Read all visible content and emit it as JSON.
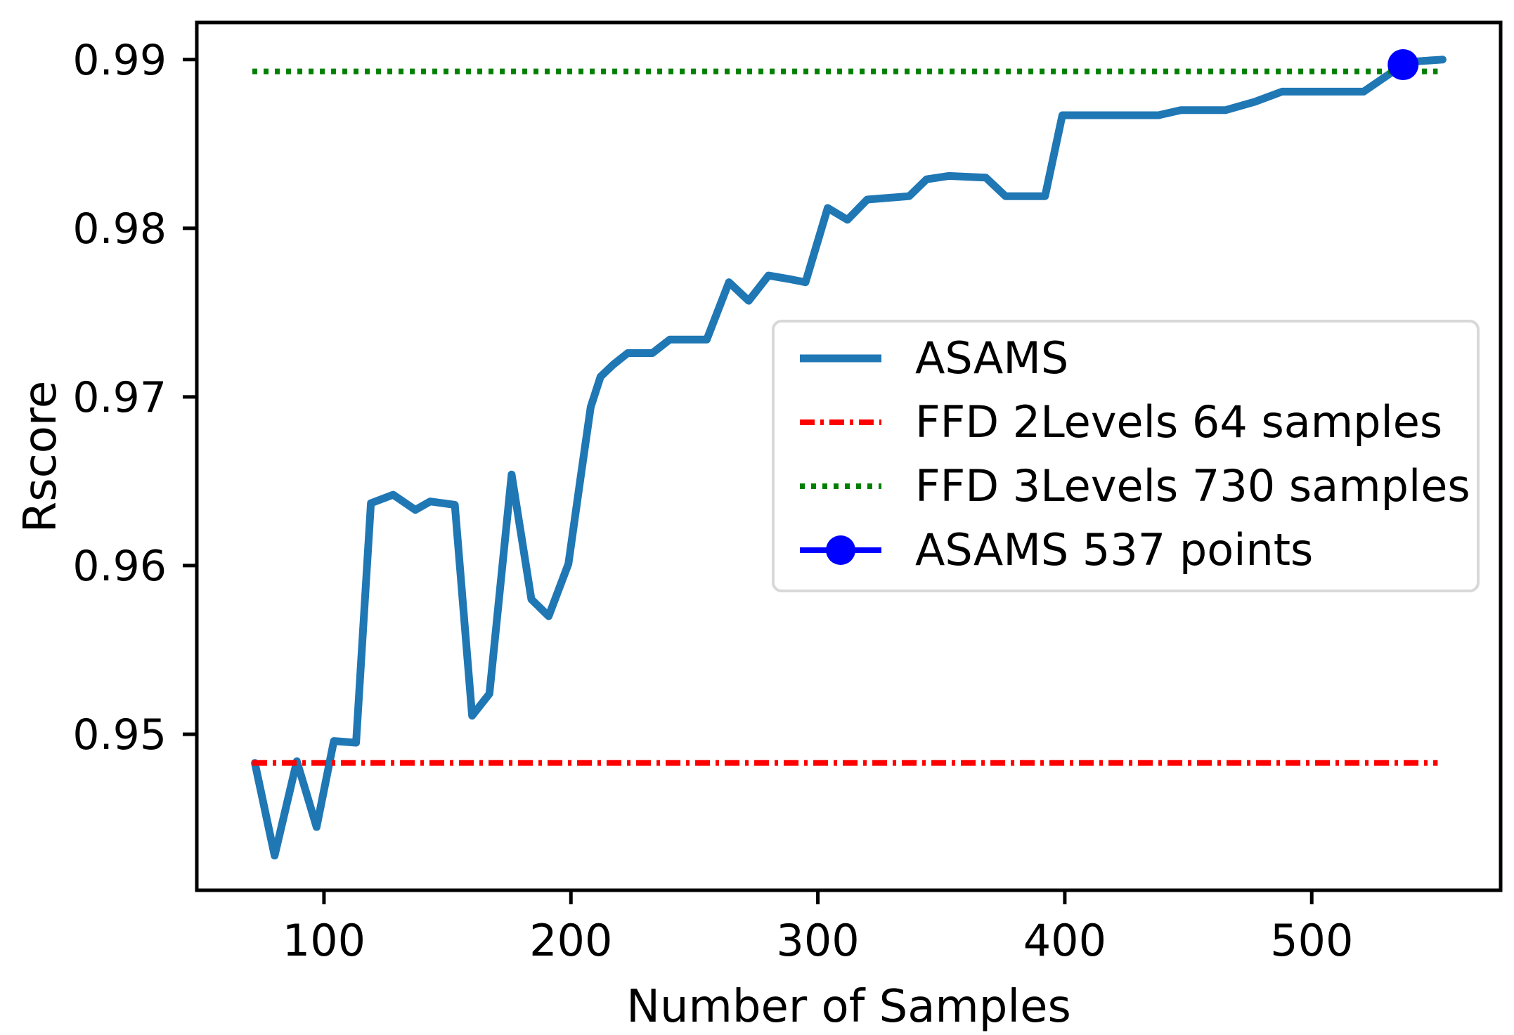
{
  "figure": {
    "background_color": "#ffffff"
  },
  "chart_data": {
    "type": "line",
    "title": "",
    "xlabel": "Number of Samples",
    "ylabel": "Rscore",
    "xlim": [
      48.5,
      576.5
    ],
    "ylim": [
      0.94075,
      0.9922
    ],
    "xticks": [
      100,
      200,
      300,
      400,
      500
    ],
    "xtick_labels": [
      "100",
      "200",
      "300",
      "400",
      "500"
    ],
    "yticks": [
      0.95,
      0.96,
      0.97,
      0.98,
      0.99
    ],
    "ytick_labels": [
      "0.95",
      "0.96",
      "0.97",
      "0.98",
      "0.99"
    ],
    "grid": false,
    "legend": {
      "position": "center-right-inside",
      "border_color": "#d8d8d8",
      "background": "#ffffff"
    },
    "series": [
      {
        "name": "ASAMS",
        "kind": "line",
        "color": "#1f77b4",
        "line_style": "solid",
        "line_width": 11,
        "points": [
          [
            72,
            0.9483
          ],
          [
            80,
            0.9428
          ],
          [
            89,
            0.9484
          ],
          [
            97,
            0.9445
          ],
          [
            104,
            0.9496
          ],
          [
            113,
            0.9495
          ],
          [
            119,
            0.9637
          ],
          [
            128,
            0.9642
          ],
          [
            137,
            0.9633
          ],
          [
            143,
            0.9638
          ],
          [
            153,
            0.9636
          ],
          [
            160,
            0.9511
          ],
          [
            167,
            0.9524
          ],
          [
            176,
            0.9654
          ],
          [
            184,
            0.958
          ],
          [
            191,
            0.957
          ],
          [
            199,
            0.9601
          ],
          [
            204,
            0.9653
          ],
          [
            208,
            0.9694
          ],
          [
            212,
            0.9712
          ],
          [
            217,
            0.9719
          ],
          [
            223,
            0.9726
          ],
          [
            233,
            0.9726
          ],
          [
            240,
            0.9734
          ],
          [
            255,
            0.9734
          ],
          [
            264,
            0.9768
          ],
          [
            272,
            0.9757
          ],
          [
            280,
            0.9772
          ],
          [
            288,
            0.977
          ],
          [
            295,
            0.9768
          ],
          [
            304,
            0.9812
          ],
          [
            312,
            0.9805
          ],
          [
            320,
            0.9817
          ],
          [
            337,
            0.9819
          ],
          [
            344,
            0.9829
          ],
          [
            353,
            0.9831
          ],
          [
            368,
            0.983
          ],
          [
            376,
            0.9819
          ],
          [
            392,
            0.9819
          ],
          [
            399,
            0.9867
          ],
          [
            438,
            0.9867
          ],
          [
            447,
            0.987
          ],
          [
            465,
            0.987
          ],
          [
            477,
            0.9875
          ],
          [
            488,
            0.9881
          ],
          [
            521,
            0.9881
          ],
          [
            537,
            0.9897
          ],
          [
            543,
            0.9899
          ],
          [
            553,
            0.99
          ]
        ]
      },
      {
        "name": "FFD 2Levels 64 samples",
        "kind": "hline",
        "color": "#ff0000",
        "line_style": "dashdot",
        "line_width": 8,
        "y": 0.9483,
        "x_range": [
          71,
          551
        ]
      },
      {
        "name": "FFD 3Levels 730 samples",
        "kind": "hline",
        "color": "#008000",
        "line_style": "dotted",
        "line_width": 8,
        "y": 0.9893,
        "x_range": [
          71,
          551
        ]
      },
      {
        "name": "ASAMS 537 points",
        "kind": "marker",
        "color": "#0000ff",
        "line_style": "solid",
        "line_width": 8,
        "marker": "circle",
        "marker_radius": 22,
        "point": [
          537,
          0.9897
        ]
      }
    ]
  }
}
